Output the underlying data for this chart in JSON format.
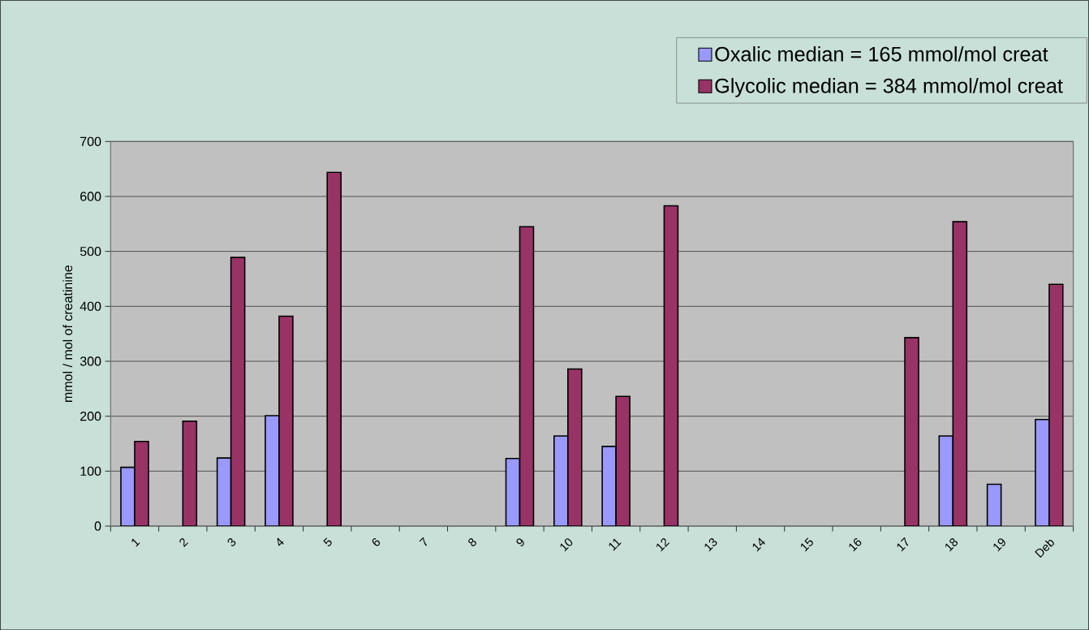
{
  "chart_data": {
    "type": "bar",
    "ylabel": "mmol / mol of creatinine",
    "categories": [
      "1",
      "2",
      "3",
      "4",
      "5",
      "6",
      "7",
      "8",
      "9",
      "10",
      "11",
      "12",
      "13",
      "14",
      "15",
      "16",
      "17",
      "18",
      "19",
      "Deb"
    ],
    "series": [
      {
        "name": "Oxalic median = 165 mmol/mol creat",
        "color": "#9999ff",
        "values": [
          107,
          null,
          124,
          201,
          null,
          null,
          null,
          null,
          123,
          164,
          145,
          null,
          null,
          null,
          null,
          null,
          null,
          164,
          76,
          194
        ]
      },
      {
        "name": "Glycolic  median = 384 mmol/mol creat",
        "color": "#993366",
        "values": [
          154,
          191,
          489,
          382,
          644,
          null,
          null,
          null,
          545,
          286,
          236,
          583,
          null,
          null,
          null,
          null,
          343,
          554,
          null,
          440
        ]
      }
    ],
    "ylim": [
      0,
      700
    ],
    "yticks": [
      0,
      100,
      200,
      300,
      400,
      500,
      600,
      700
    ],
    "grid": "y",
    "legend": "top right"
  }
}
